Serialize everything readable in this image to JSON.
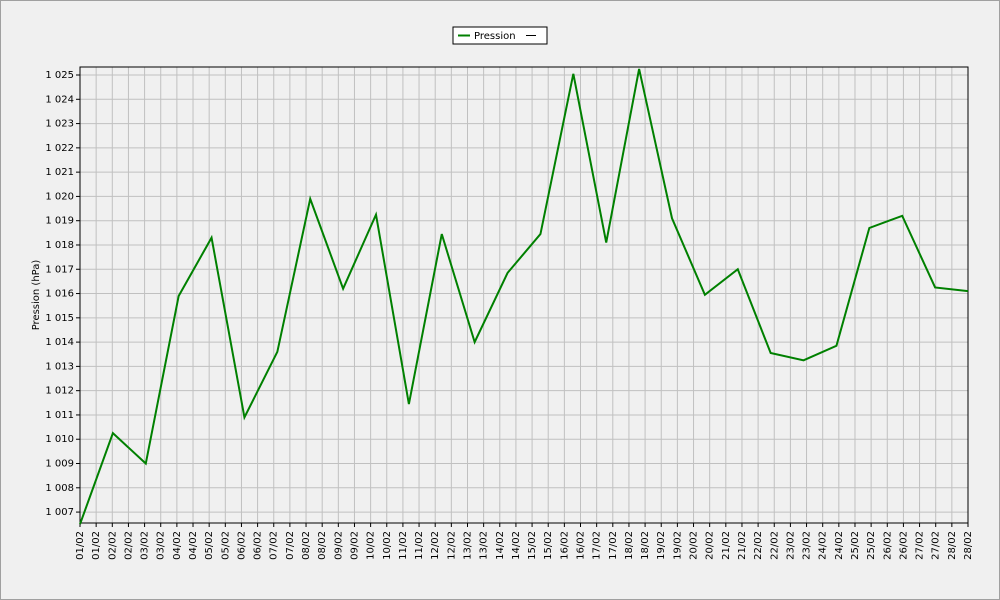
{
  "chart_data": {
    "type": "line",
    "legend": "Pression",
    "y_label": "Pression (hPa)",
    "xticks": [
      "01/02",
      "01/02",
      "02/02",
      "02/02",
      "03/02",
      "03/02",
      "04/02",
      "04/02",
      "05/02",
      "05/02",
      "06/02",
      "06/02",
      "07/02",
      "07/02",
      "08/02",
      "08/02",
      "09/02",
      "09/02",
      "10/02",
      "10/02",
      "11/02",
      "11/02",
      "12/02",
      "12/02",
      "13/02",
      "13/02",
      "14/02",
      "14/02",
      "15/02",
      "15/02",
      "16/02",
      "16/02",
      "17/02",
      "17/02",
      "18/02",
      "18/02",
      "19/02",
      "19/02",
      "20/02",
      "20/02",
      "21/02",
      "21/02",
      "22/02",
      "22/02",
      "23/02",
      "23/02",
      "24/02",
      "24/02",
      "25/02",
      "25/02",
      "26/02",
      "26/02",
      "27/02",
      "27/02",
      "28/02",
      "28/02"
    ],
    "series": [
      {
        "name": "Pression",
        "color": "#008000",
        "values": [
          1006.5,
          1010.25,
          1009,
          1015.9,
          1018.3,
          1010.9,
          1013.6,
          1019.9,
          1016.2,
          1019.25,
          1011.45,
          1018.45,
          1014,
          1016.85,
          1018.45,
          1025.05,
          1018.1,
          1025.25,
          1019.1,
          1015.95,
          1017,
          1013.55,
          1013.25,
          1013.85,
          1018.7,
          1019.2,
          1016.25,
          1016.1
        ]
      }
    ],
    "ylim": [
      1006.55,
      1025.33
    ],
    "yticks": [
      {
        "value": 1007,
        "label": "1 007"
      },
      {
        "value": 1008,
        "label": "1 008"
      },
      {
        "value": 1009,
        "label": "1 009"
      },
      {
        "value": 1010,
        "label": "1 010"
      },
      {
        "value": 1011,
        "label": "1 011"
      },
      {
        "value": 1012,
        "label": "1 012"
      },
      {
        "value": 1013,
        "label": "1 013"
      },
      {
        "value": 1014,
        "label": "1 014"
      },
      {
        "value": 1015,
        "label": "1 015"
      },
      {
        "value": 1016,
        "label": "1 016"
      },
      {
        "value": 1017,
        "label": "1 017"
      },
      {
        "value": 1018,
        "label": "1 018"
      },
      {
        "value": 1019,
        "label": "1 019"
      },
      {
        "value": 1020,
        "label": "1 020"
      },
      {
        "value": 1021,
        "label": "1 021"
      },
      {
        "value": 1022,
        "label": "1 022"
      },
      {
        "value": 1023,
        "label": "1 023"
      },
      {
        "value": 1024,
        "label": "1 024"
      },
      {
        "value": 1025,
        "label": "1 025"
      }
    ],
    "grid": true
  }
}
